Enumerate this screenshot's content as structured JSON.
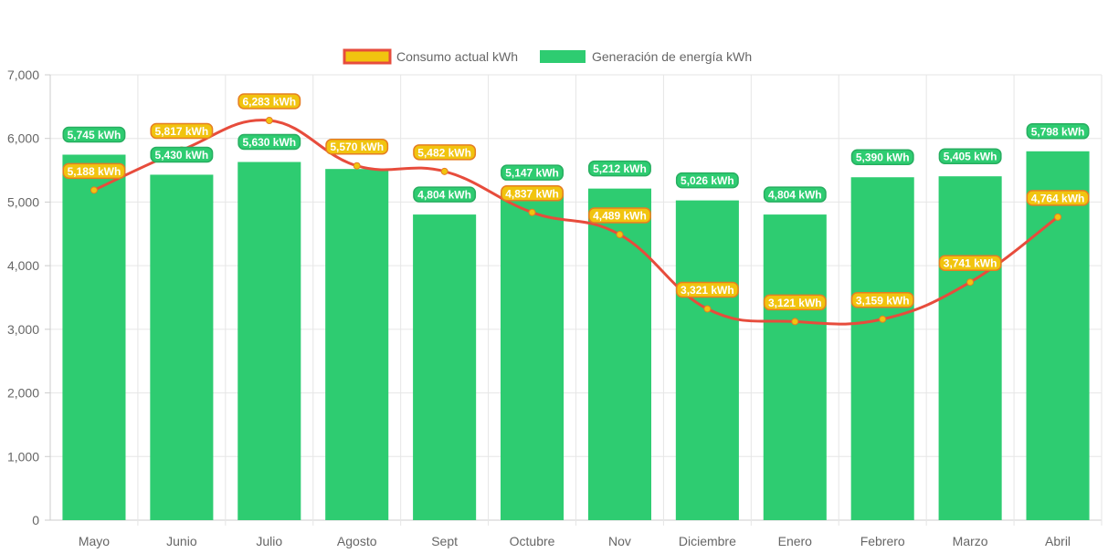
{
  "chart_data": {
    "type": "bar",
    "categories": [
      "Mayo",
      "Junio",
      "Julio",
      "Agosto",
      "Sept",
      "Octubre",
      "Nov",
      "Diciembre",
      "Enero",
      "Febrero",
      "Marzo",
      "Abril"
    ],
    "series": [
      {
        "name": "Consumo actual kWh",
        "type": "line",
        "values": [
          5188,
          5817,
          6283,
          5570,
          5482,
          4837,
          4489,
          3321,
          3121,
          3159,
          3741,
          4764
        ],
        "labels": [
          "5,188 kWh",
          "5,817 kWh",
          "6,283 kWh",
          "5,570 kWh",
          "5,482 kWh",
          "4,837 kWh",
          "4,489 kWh",
          "3,321 kWh",
          "3,121 kWh",
          "3,159 kWh",
          "3,741 kWh",
          "4,764 kWh"
        ],
        "color": "#e74c3c",
        "fill": "#f1c40f"
      },
      {
        "name": "Generación de energía kWh",
        "type": "bar",
        "values": [
          5745,
          5430,
          5630,
          5520,
          4804,
          5147,
          5212,
          5026,
          4804,
          5390,
          5405,
          5798
        ],
        "labels": [
          "5,745 kWh",
          "5,430 kWh",
          "5,630 kWh",
          "",
          "4,804 kWh",
          "5,147 kWh",
          "5,212 kWh",
          "5,026 kWh",
          "4,804 kWh",
          "5,390 kWh",
          "5,405 kWh",
          "5,798 kWh"
        ],
        "color": "#2ecc71"
      }
    ],
    "ylim": [
      0,
      7000
    ],
    "yticks": [
      "0",
      "1,000",
      "2,000",
      "3,000",
      "4,000",
      "5,000",
      "6,000",
      "7,000"
    ],
    "grid": true,
    "legend": "top"
  }
}
